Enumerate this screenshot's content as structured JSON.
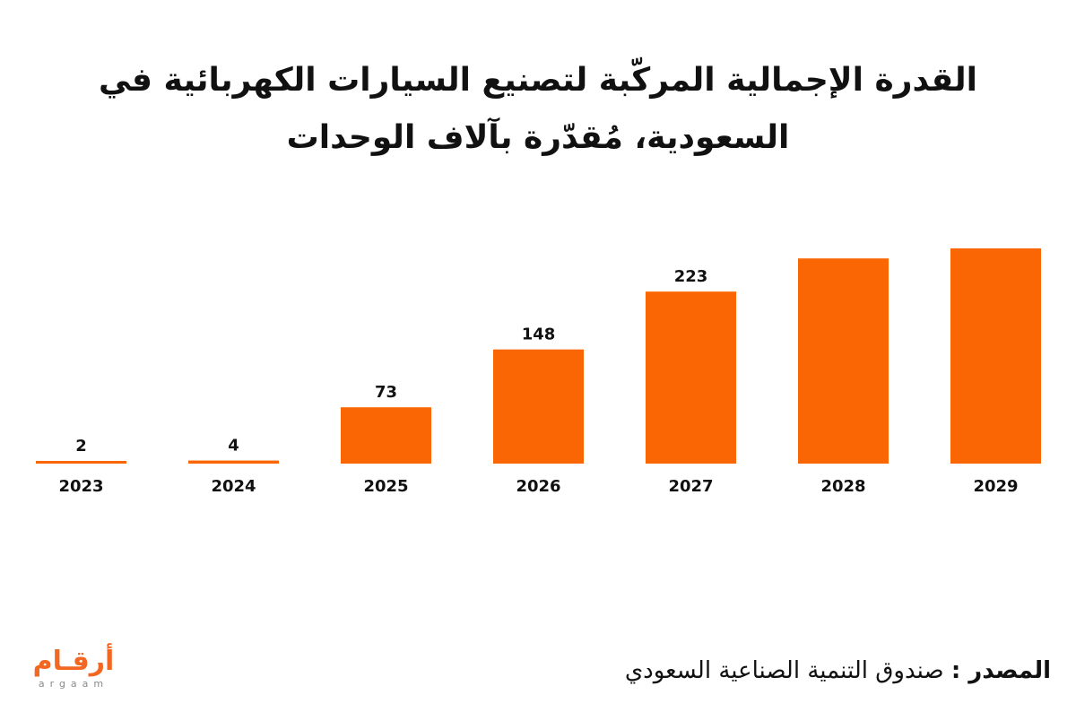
{
  "title": "القدرة الإجمالية المركّبة لتصنيع السيارات الكهربائية في السعودية، مُقدّرة بآلاف الوحدات",
  "source": {
    "label": "المصدر :",
    "text": "صندوق التنمية الصناعية السعودي"
  },
  "logo": {
    "arabic": "أرقـام",
    "latin": "argaam"
  },
  "colors": {
    "bar": "#fb6604",
    "text": "#111111",
    "brand": "#f26722"
  },
  "chart_data": {
    "type": "bar",
    "title": "القدرة الإجمالية المركّبة لتصنيع السيارات الكهربائية في السعودية، مُقدّرة بآلاف الوحدات",
    "xlabel": "",
    "ylabel": "",
    "categories": [
      "2023",
      "2024",
      "2025",
      "2026",
      "2027",
      "2028",
      "2029"
    ],
    "values": [
      2,
      4,
      73,
      148,
      223,
      266,
      279
    ],
    "labels": [
      "2",
      "4",
      "73",
      "148",
      "223",
      "",
      ""
    ],
    "ylim": [
      0,
      300
    ],
    "grid": false,
    "legend": "none"
  }
}
